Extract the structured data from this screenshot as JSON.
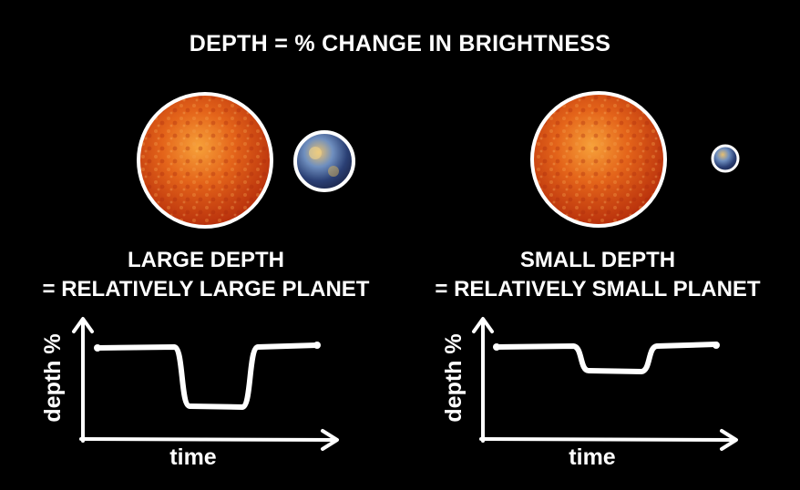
{
  "title": "DEPTH = % CHANGE IN BRIGHTNESS",
  "panels": [
    {
      "id": "left",
      "caption_line1": "LARGE DEPTH",
      "caption_line2": "= RELATIVELY LARGE PLANET",
      "ylabel": "depth %",
      "xlabel": "time",
      "transit_depth_fraction": 0.64
    },
    {
      "id": "right",
      "caption_line1": "SMALL DEPTH",
      "caption_line2": "= RELATIVELY SMALL PLANET",
      "ylabel": "depth %",
      "xlabel": "time",
      "transit_depth_fraction": 0.26
    }
  ],
  "colors": {
    "background": "#000000",
    "star_fill": "#d9480f",
    "outline": "#ffffff",
    "planet_fill": "#3a5a8a"
  }
}
